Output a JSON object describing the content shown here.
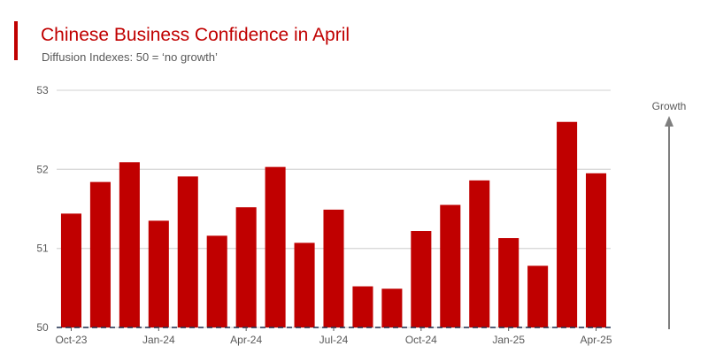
{
  "header": {
    "title": "Chinese Business Confidence in April",
    "subtitle": "Diffusion Indexes: 50 = ‘no growth’"
  },
  "colors": {
    "accent": "#c00000",
    "bar": "#c00000",
    "grid": "#d9d9d9",
    "text": "#595959",
    "arrow": "#7f7f7f"
  },
  "annotation": {
    "growth_label": "Growth",
    "arrow_icon": "up-arrow-icon"
  },
  "chart_data": {
    "type": "bar",
    "title": "Chinese Business Confidence in April",
    "subtitle": "Diffusion Indexes: 50 = ‘no growth’",
    "xlabel": "",
    "ylabel": "",
    "ylim": [
      50,
      53
    ],
    "yticks": [
      50,
      51,
      52,
      53
    ],
    "grid": true,
    "categories": [
      "Oct-23",
      "Nov-23",
      "Dec-23",
      "Jan-24",
      "Feb-24",
      "Mar-24",
      "Apr-24",
      "May-24",
      "Jun-24",
      "Jul-24",
      "Aug-24",
      "Sep-24",
      "Oct-24",
      "Nov-24",
      "Dec-24",
      "Jan-25",
      "Feb-25",
      "Mar-25",
      "Apr-25"
    ],
    "tick_labels": [
      "Oct-23",
      "Jan-24",
      "Apr-24",
      "Jul-24",
      "Oct-24",
      "Jan-25",
      "Apr-25"
    ],
    "values": [
      51.44,
      51.84,
      52.09,
      51.35,
      51.91,
      51.16,
      51.52,
      52.03,
      51.07,
      51.49,
      50.52,
      50.49,
      51.22,
      51.55,
      51.86,
      51.13,
      50.78,
      52.6,
      51.95
    ]
  }
}
